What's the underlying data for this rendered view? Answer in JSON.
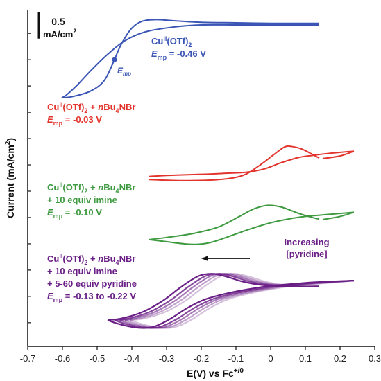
{
  "chart_data": {
    "type": "line",
    "title": "",
    "xlabel": "E(V) vs Fc",
    "xlabel_sup": "+/0",
    "ylabel": "Current (mA/cm",
    "ylabel_sup": "2",
    "ylabel_end": ")",
    "xlim": [
      -0.7,
      0.3
    ],
    "x_ticks": [
      "-0.7",
      "-0.6",
      "-0.5",
      "-0.4",
      "-0.3",
      "-0.2",
      "-0.1",
      "0",
      "0.1",
      "0.2",
      "0.3"
    ],
    "scale_bar": {
      "value": "0.5",
      "unit": "mA/cm",
      "unit_sup": "2"
    },
    "colors": {
      "blue": "#3a55b5",
      "red": "#e2342c",
      "green": "#3e9a40",
      "purple": "#6a1f86",
      "arrow": "#111111"
    },
    "series": [
      {
        "color": "blue",
        "label_lines": [
          {
            "parts": [
              {
                "t": "Cu"
              },
              {
                "t": "II",
                "sup": true
              },
              {
                "t": "(OTf)"
              },
              {
                "t": "2",
                "sub": true
              }
            ]
          },
          {
            "parts": [
              {
                "t": "E",
                "ital": true
              },
              {
                "t": "mp",
                "sub": true
              },
              {
                "t": " = -0.46 V"
              }
            ]
          }
        ],
        "oxidation": [
          [
            -0.45,
            0.0
          ],
          [
            -0.43,
            0.3
          ],
          [
            -0.4,
            0.6
          ],
          [
            -0.37,
            0.73
          ],
          [
            -0.33,
            0.76
          ],
          [
            -0.28,
            0.74
          ],
          [
            -0.2,
            0.71
          ],
          [
            -0.1,
            0.7
          ],
          [
            0.0,
            0.69
          ],
          [
            0.1,
            0.69
          ],
          [
            0.14,
            0.69
          ]
        ],
        "reduction": [
          [
            0.14,
            0.66
          ],
          [
            0.0,
            0.66
          ],
          [
            -0.1,
            0.66
          ],
          [
            -0.2,
            0.66
          ],
          [
            -0.28,
            0.62
          ],
          [
            -0.36,
            0.53
          ],
          [
            -0.42,
            0.36
          ],
          [
            -0.47,
            0.1
          ],
          [
            -0.52,
            -0.22
          ],
          [
            -0.56,
            -0.5
          ],
          [
            -0.59,
            -0.68
          ],
          [
            -0.6,
            -0.72
          ],
          [
            -0.57,
            -0.7
          ],
          [
            -0.52,
            -0.6
          ],
          [
            -0.48,
            -0.4
          ],
          [
            -0.45,
            0.0
          ]
        ],
        "marker": {
          "x": -0.45,
          "y": 0.0,
          "label": "E",
          "label_sub": "mp"
        }
      },
      {
        "color": "red",
        "label_lines": [
          {
            "parts": [
              {
                "t": "Cu"
              },
              {
                "t": "II",
                "sup": true
              },
              {
                "t": "(OTf)"
              },
              {
                "t": "2",
                "sub": true
              },
              {
                "t": " + "
              },
              {
                "t": "n",
                "ital": true
              },
              {
                "t": "Bu"
              },
              {
                "t": "4",
                "sub": true
              },
              {
                "t": "NBr"
              }
            ]
          },
          {
            "parts": [
              {
                "t": "E",
                "ital": true
              },
              {
                "t": "mp",
                "sub": true
              },
              {
                "t": " = -0.03 V"
              }
            ]
          }
        ],
        "oxidation": [
          [
            -0.35,
            -2.28
          ],
          [
            -0.25,
            -2.3
          ],
          [
            -0.15,
            -2.28
          ],
          [
            -0.08,
            -2.2
          ],
          [
            -0.03,
            -2.0
          ],
          [
            0.01,
            -1.8
          ],
          [
            0.04,
            -1.66
          ],
          [
            0.06,
            -1.65
          ],
          [
            0.09,
            -1.7
          ],
          [
            0.12,
            -1.8
          ],
          [
            0.14,
            -1.87
          ]
        ],
        "reduction": [
          [
            0.24,
            -1.74
          ],
          [
            0.17,
            -1.78
          ],
          [
            0.12,
            -1.82
          ],
          [
            0.08,
            -1.86
          ],
          [
            0.03,
            -1.96
          ],
          [
            -0.02,
            -2.08
          ],
          [
            -0.07,
            -2.14
          ],
          [
            -0.13,
            -2.16
          ],
          [
            -0.2,
            -2.18
          ],
          [
            -0.3,
            -2.2
          ],
          [
            -0.35,
            -2.22
          ]
        ],
        "tail": [
          [
            0.15,
            -1.88
          ],
          [
            0.2,
            -1.83
          ],
          [
            0.24,
            -1.74
          ]
        ]
      },
      {
        "color": "green",
        "label_lines": [
          {
            "parts": [
              {
                "t": "Cu"
              },
              {
                "t": "II",
                "sup": true
              },
              {
                "t": "(OTf)"
              },
              {
                "t": "2",
                "sub": true
              },
              {
                "t": " + "
              },
              {
                "t": "n",
                "ital": true
              },
              {
                "t": "Bu"
              },
              {
                "t": "4",
                "sub": true
              },
              {
                "t": "NBr"
              }
            ]
          },
          {
            "parts": [
              {
                "t": "+ 10 equiv imine"
              }
            ]
          },
          {
            "parts": [
              {
                "t": "E",
                "ital": true
              },
              {
                "t": "mp",
                "sub": true
              },
              {
                "t": " = -0.10 V"
              }
            ]
          }
        ],
        "oxidation": [
          [
            -0.35,
            -3.42
          ],
          [
            -0.3,
            -3.38
          ],
          [
            -0.22,
            -3.3
          ],
          [
            -0.15,
            -3.18
          ],
          [
            -0.09,
            -2.98
          ],
          [
            -0.05,
            -2.84
          ],
          [
            -0.01,
            -2.77
          ],
          [
            0.03,
            -2.8
          ],
          [
            0.08,
            -2.92
          ],
          [
            0.12,
            -3.0
          ],
          [
            0.14,
            -3.03
          ]
        ],
        "reduction": [
          [
            0.24,
            -2.9
          ],
          [
            0.17,
            -2.94
          ],
          [
            0.1,
            -2.98
          ],
          [
            0.05,
            -3.03
          ],
          [
            0.0,
            -3.1
          ],
          [
            -0.06,
            -3.22
          ],
          [
            -0.12,
            -3.36
          ],
          [
            -0.17,
            -3.47
          ],
          [
            -0.21,
            -3.51
          ],
          [
            -0.25,
            -3.5
          ],
          [
            -0.3,
            -3.46
          ],
          [
            -0.35,
            -3.42
          ]
        ],
        "tail": [
          [
            0.15,
            -3.04
          ],
          [
            0.2,
            -2.98
          ],
          [
            0.24,
            -2.9
          ]
        ]
      },
      {
        "color": "purple",
        "label_lines": [
          {
            "parts": [
              {
                "t": "Cu"
              },
              {
                "t": "II",
                "sup": true
              },
              {
                "t": "(OTf)"
              },
              {
                "t": "2",
                "sub": true
              },
              {
                "t": " + "
              },
              {
                "t": "n",
                "ital": true
              },
              {
                "t": "Bu"
              },
              {
                "t": "4",
                "sub": true
              },
              {
                "t": "NBr"
              }
            ]
          },
          {
            "parts": [
              {
                "t": "+ 10 equiv imine"
              }
            ]
          },
          {
            "parts": [
              {
                "t": "+ 5-60 equiv pyridine"
              }
            ]
          },
          {
            "parts": [
              {
                "t": "E",
                "ital": true
              },
              {
                "t": "mp",
                "sub": true
              },
              {
                "t": " = -0.13 to -0.22 V"
              }
            ]
          }
        ],
        "traces": [
          {
            "shift": -0.05,
            "opacity": 1.0
          },
          {
            "shift": -0.03,
            "opacity": 0.82
          },
          {
            "shift": -0.015,
            "opacity": 0.6
          },
          {
            "shift": 0.0,
            "opacity": 0.42
          },
          {
            "shift": 0.015,
            "opacity": 0.28
          }
        ],
        "base_oxidation": [
          [
            -0.42,
            -4.95
          ],
          [
            -0.38,
            -4.92
          ],
          [
            -0.32,
            -4.8
          ],
          [
            -0.26,
            -4.58
          ],
          [
            -0.21,
            -4.33
          ],
          [
            -0.16,
            -4.12
          ],
          [
            -0.12,
            -4.07
          ],
          [
            -0.08,
            -4.12
          ],
          [
            -0.03,
            -4.22
          ],
          [
            0.02,
            -4.28
          ],
          [
            0.1,
            -4.31
          ],
          [
            0.14,
            -4.31
          ]
        ],
        "base_reduction": [
          [
            0.24,
            -4.2
          ],
          [
            0.18,
            -4.23
          ],
          [
            0.12,
            -4.26
          ],
          [
            0.05,
            -4.3
          ],
          [
            -0.02,
            -4.37
          ],
          [
            -0.08,
            -4.45
          ],
          [
            -0.14,
            -4.56
          ],
          [
            -0.19,
            -4.72
          ],
          [
            -0.24,
            -4.93
          ],
          [
            -0.28,
            -5.06
          ],
          [
            -0.31,
            -5.1
          ],
          [
            -0.35,
            -5.08
          ],
          [
            -0.39,
            -5.02
          ],
          [
            -0.42,
            -4.95
          ]
        ]
      }
    ],
    "annotation": {
      "text_lines": [
        "Increasing",
        "[pyridine]"
      ],
      "arrow_from_x": -0.06,
      "arrow_to_x": -0.2,
      "arrow_y": -3.78
    },
    "ylim": [
      -5.45,
      0.95
    ]
  }
}
